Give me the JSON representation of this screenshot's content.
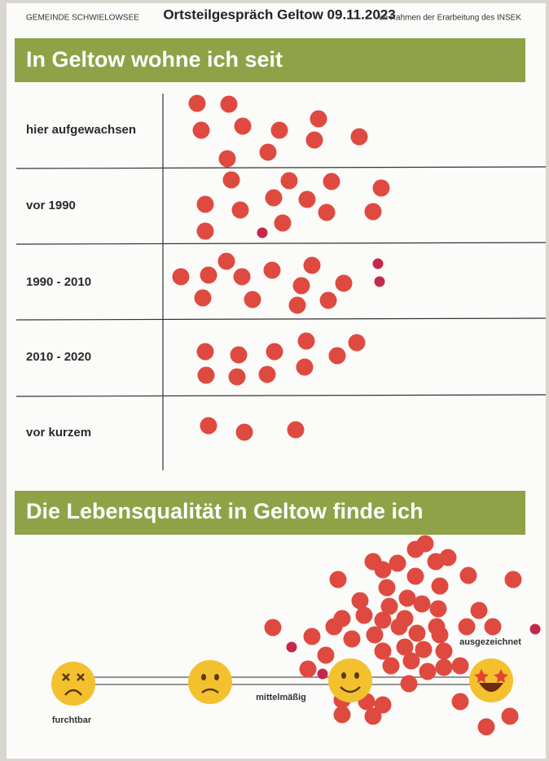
{
  "header": {
    "left": "GEMEINDE SCHWIELOWSEE",
    "title": "Ortsteilgespräch Geltow 09.11.2023",
    "right": "im Rahmen der Erarbeitung des INSEK"
  },
  "sections": [
    {
      "title": "In Geltow wohne ich seit",
      "rows": [
        "hier aufgewachsen",
        "vor 1990",
        "1990 - 2010",
        "2010 - 2020",
        "vor kurzem"
      ]
    },
    {
      "title": "Die Lebensqualität in Geltow finde ich",
      "scale": [
        "furchtbar",
        "mittelmäßig",
        "ausgezeichnet"
      ]
    }
  ]
}
